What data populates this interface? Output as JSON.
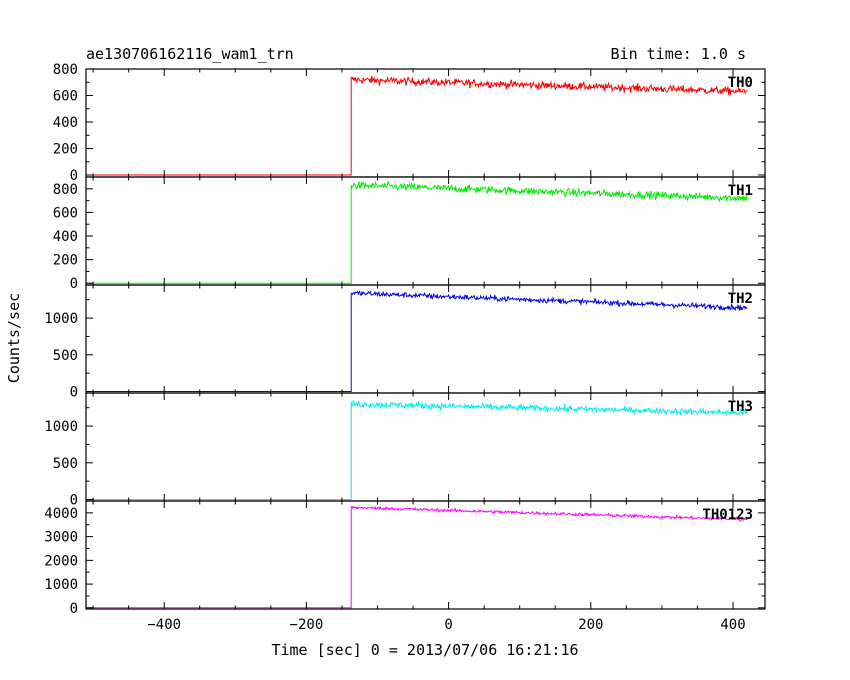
{
  "header": {
    "title": "ae130706162116_wam1_trn",
    "bin_time": "Bin time: 1.0 s"
  },
  "chart_data": {
    "type": "line",
    "title": "ae130706162116_wam1_trn",
    "subtitle": "Bin time: 1.0 s",
    "xlabel": "Time [sec] 0 = 2013/07/06 16:21:16",
    "ylabel": "Counts/sec",
    "xlim": [
      -510,
      445
    ],
    "x_ticks": [
      -400,
      -200,
      0,
      200,
      400
    ],
    "x_tick_labels": [
      "−400",
      "−200",
      "0",
      "200",
      "400"
    ],
    "bin_time_s": 1.0,
    "x_start": -510,
    "x_rise": -137,
    "x_end": 420,
    "grid": false,
    "legend": "none",
    "panels": [
      {
        "name": "TH0",
        "color": "#ff0000",
        "ylim": [
          -15,
          800
        ],
        "y_ticks": [
          0,
          200,
          400,
          600,
          800
        ],
        "y_tick_labels": [
          "0",
          "200",
          "400",
          "600",
          "800"
        ],
        "pre_level": 0,
        "start_level": 720,
        "end_level": 630,
        "noise": 28
      },
      {
        "name": "TH1",
        "color": "#00ee00",
        "ylim": [
          -15,
          900
        ],
        "y_ticks": [
          0,
          200,
          400,
          600,
          800
        ],
        "y_tick_labels": [
          "0",
          "200",
          "400",
          "600",
          "800"
        ],
        "pre_level": 0,
        "start_level": 830,
        "end_level": 720,
        "noise": 30
      },
      {
        "name": "TH2",
        "color": "#0000ee",
        "ylim": [
          -20,
          1450
        ],
        "y_ticks": [
          0,
          500,
          1000
        ],
        "y_tick_labels": [
          "0",
          "500",
          "1000"
        ],
        "pre_level": 0,
        "start_level": 1340,
        "end_level": 1140,
        "noise": 35
      },
      {
        "name": "TH3",
        "color": "#00eeee",
        "ylim": [
          -20,
          1450
        ],
        "y_ticks": [
          0,
          500,
          1000
        ],
        "y_tick_labels": [
          "0",
          "500",
          "1000"
        ],
        "pre_level": 0,
        "start_level": 1300,
        "end_level": 1180,
        "noise": 40
      },
      {
        "name": "TH0123",
        "color": "#ff00ff",
        "ylim": [
          -50,
          4500
        ],
        "y_ticks": [
          0,
          1000,
          2000,
          3000,
          4000
        ],
        "y_tick_labels": [
          "0",
          "1000",
          "2000",
          "3000",
          "4000"
        ],
        "pre_level": 0,
        "start_level": 4230,
        "end_level": 3720,
        "noise": 60
      }
    ]
  }
}
